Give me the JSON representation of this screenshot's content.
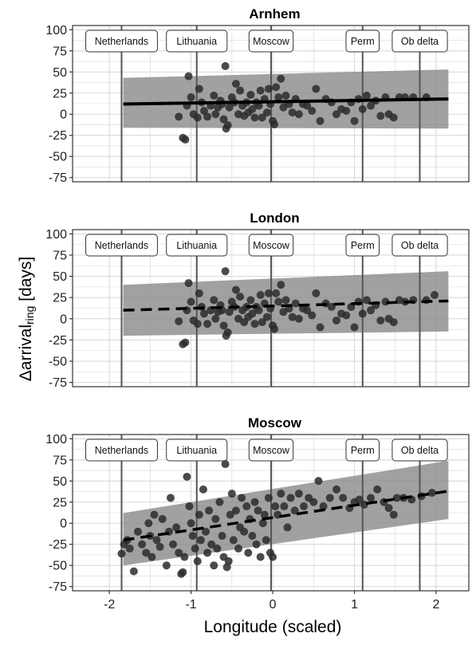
{
  "figure": {
    "ylabel_main": "Δarrival",
    "ylabel_sub": "ring",
    "ylabel_unit": " [days]",
    "xlabel": "Longitude (scaled)"
  },
  "colors": {
    "panel_bg": "#ffffff",
    "grid": "#d9d9d9",
    "ribbon": "#8a8a8a",
    "points": "#2b2b2b",
    "line": "#000000",
    "vline": "#555555"
  },
  "chart_data": [
    {
      "type": "scatter",
      "title": "Arnhem",
      "trend_style": "solid",
      "xlim": [
        -2.45,
        2.4
      ],
      "ylim": [
        -80,
        105
      ],
      "x_ticks": [
        -2,
        -1,
        0,
        1,
        2
      ],
      "y_ticks": [
        -75,
        -50,
        -25,
        0,
        25,
        50,
        75,
        100
      ],
      "grid": true,
      "locations": [
        {
          "label": "Netherlands",
          "x": -1.85
        },
        {
          "label": "Lithuania",
          "x": -0.93
        },
        {
          "label": "Moscow",
          "x": -0.02
        },
        {
          "label": "Perm",
          "x": 1.1
        },
        {
          "label": "Ob delta",
          "x": 1.8
        }
      ],
      "trend": {
        "x": [
          -1.83,
          2.15
        ],
        "y": [
          12,
          18
        ]
      },
      "band": {
        "x": [
          -1.83,
          2.15
        ],
        "lower": [
          -16,
          -17
        ],
        "upper": [
          43,
          53
        ]
      },
      "points": [
        [
          -1.1,
          -28
        ],
        [
          -1.07,
          -30
        ],
        [
          -1.15,
          -3
        ],
        [
          -1.05,
          10
        ],
        [
          -1.03,
          45
        ],
        [
          -1.0,
          20
        ],
        [
          -0.97,
          0
        ],
        [
          -0.92,
          -4
        ],
        [
          -0.9,
          30
        ],
        [
          -0.87,
          14
        ],
        [
          -0.84,
          4
        ],
        [
          -0.8,
          -3
        ],
        [
          -0.76,
          10
        ],
        [
          -0.72,
          22
        ],
        [
          -0.7,
          0
        ],
        [
          -0.67,
          8
        ],
        [
          -0.64,
          16
        ],
        [
          -0.62,
          12
        ],
        [
          -0.6,
          -6
        ],
        [
          -0.58,
          57
        ],
        [
          -0.57,
          -17
        ],
        [
          -0.55,
          -13
        ],
        [
          -0.53,
          8
        ],
        [
          -0.5,
          20
        ],
        [
          -0.47,
          14
        ],
        [
          -0.45,
          36
        ],
        [
          -0.42,
          0
        ],
        [
          -0.4,
          28
        ],
        [
          -0.37,
          10
        ],
        [
          -0.35,
          -2
        ],
        [
          -0.32,
          14
        ],
        [
          -0.3,
          2
        ],
        [
          -0.27,
          23
        ],
        [
          -0.25,
          6
        ],
        [
          -0.22,
          -4
        ],
        [
          -0.2,
          14
        ],
        [
          -0.17,
          10
        ],
        [
          -0.15,
          28
        ],
        [
          -0.13,
          -4
        ],
        [
          -0.1,
          18
        ],
        [
          -0.07,
          2
        ],
        [
          -0.05,
          30
        ],
        [
          -0.03,
          12
        ],
        [
          0.0,
          -8
        ],
        [
          0.02,
          -12
        ],
        [
          0.04,
          32
        ],
        [
          0.07,
          20
        ],
        [
          0.1,
          42
        ],
        [
          0.13,
          8
        ],
        [
          0.16,
          22
        ],
        [
          0.2,
          12
        ],
        [
          0.24,
          2
        ],
        [
          0.28,
          18
        ],
        [
          0.32,
          0
        ],
        [
          0.37,
          12
        ],
        [
          0.42,
          10
        ],
        [
          0.48,
          4
        ],
        [
          0.53,
          30
        ],
        [
          0.58,
          -8
        ],
        [
          0.65,
          18
        ],
        [
          0.72,
          14
        ],
        [
          0.78,
          0
        ],
        [
          0.84,
          6
        ],
        [
          0.9,
          4
        ],
        [
          0.96,
          14
        ],
        [
          1.0,
          -8
        ],
        [
          1.05,
          18
        ],
        [
          1.1,
          6
        ],
        [
          1.15,
          22
        ],
        [
          1.2,
          10
        ],
        [
          1.26,
          16
        ],
        [
          1.32,
          -2
        ],
        [
          1.38,
          20
        ],
        [
          1.42,
          0
        ],
        [
          1.48,
          -4
        ],
        [
          1.55,
          20
        ],
        [
          1.62,
          20
        ],
        [
          1.72,
          20
        ],
        [
          1.88,
          20
        ]
      ]
    },
    {
      "type": "scatter",
      "title": "London",
      "trend_style": "dashed",
      "xlim": [
        -2.45,
        2.4
      ],
      "ylim": [
        -80,
        105
      ],
      "x_ticks": [
        -2,
        -1,
        0,
        1,
        2
      ],
      "y_ticks": [
        -75,
        -50,
        -25,
        0,
        25,
        50,
        75,
        100
      ],
      "grid": true,
      "locations": [
        {
          "label": "Netherlands",
          "x": -1.85
        },
        {
          "label": "Lithuania",
          "x": -0.93
        },
        {
          "label": "Moscow",
          "x": -0.02
        },
        {
          "label": "Perm",
          "x": 1.1
        },
        {
          "label": "Ob delta",
          "x": 1.8
        }
      ],
      "trend": {
        "x": [
          -1.83,
          2.15
        ],
        "y": [
          10,
          21
        ]
      },
      "band": {
        "x": [
          -1.83,
          2.15
        ],
        "lower": [
          -20,
          -15
        ],
        "upper": [
          40,
          56
        ]
      },
      "points": [
        [
          -1.1,
          -30
        ],
        [
          -1.07,
          -28
        ],
        [
          -1.15,
          -3
        ],
        [
          -1.05,
          10
        ],
        [
          -1.03,
          42
        ],
        [
          -1.0,
          20
        ],
        [
          -0.97,
          -2
        ],
        [
          -0.92,
          -6
        ],
        [
          -0.9,
          30
        ],
        [
          -0.87,
          14
        ],
        [
          -0.84,
          6
        ],
        [
          -0.8,
          -6
        ],
        [
          -0.76,
          10
        ],
        [
          -0.72,
          22
        ],
        [
          -0.7,
          0
        ],
        [
          -0.67,
          8
        ],
        [
          -0.64,
          16
        ],
        [
          -0.62,
          10
        ],
        [
          -0.6,
          -8
        ],
        [
          -0.58,
          56
        ],
        [
          -0.57,
          -20
        ],
        [
          -0.55,
          -16
        ],
        [
          -0.53,
          8
        ],
        [
          -0.5,
          20
        ],
        [
          -0.47,
          14
        ],
        [
          -0.45,
          34
        ],
        [
          -0.42,
          0
        ],
        [
          -0.4,
          26
        ],
        [
          -0.37,
          10
        ],
        [
          -0.35,
          -4
        ],
        [
          -0.32,
          14
        ],
        [
          -0.3,
          2
        ],
        [
          -0.27,
          22
        ],
        [
          -0.25,
          6
        ],
        [
          -0.22,
          -6
        ],
        [
          -0.2,
          14
        ],
        [
          -0.17,
          10
        ],
        [
          -0.15,
          28
        ],
        [
          -0.13,
          -4
        ],
        [
          -0.1,
          18
        ],
        [
          -0.07,
          2
        ],
        [
          -0.05,
          30
        ],
        [
          -0.03,
          12
        ],
        [
          0.0,
          -8
        ],
        [
          0.02,
          -12
        ],
        [
          0.04,
          30
        ],
        [
          0.07,
          20
        ],
        [
          0.1,
          40
        ],
        [
          0.13,
          8
        ],
        [
          0.16,
          22
        ],
        [
          0.2,
          12
        ],
        [
          0.24,
          2
        ],
        [
          0.28,
          18
        ],
        [
          0.32,
          0
        ],
        [
          0.37,
          12
        ],
        [
          0.42,
          10
        ],
        [
          0.48,
          4
        ],
        [
          0.53,
          30
        ],
        [
          0.58,
          -10
        ],
        [
          0.65,
          18
        ],
        [
          0.72,
          14
        ],
        [
          0.78,
          -2
        ],
        [
          0.84,
          6
        ],
        [
          0.9,
          4
        ],
        [
          0.96,
          14
        ],
        [
          1.0,
          -10
        ],
        [
          1.05,
          20
        ],
        [
          1.1,
          6
        ],
        [
          1.15,
          22
        ],
        [
          1.2,
          10
        ],
        [
          1.26,
          16
        ],
        [
          1.32,
          -2
        ],
        [
          1.38,
          20
        ],
        [
          1.42,
          0
        ],
        [
          1.48,
          -4
        ],
        [
          1.55,
          22
        ],
        [
          1.62,
          20
        ],
        [
          1.72,
          22
        ],
        [
          1.88,
          22
        ],
        [
          1.98,
          28
        ]
      ]
    },
    {
      "type": "scatter",
      "title": "Moscow",
      "trend_style": "dashed",
      "xlim": [
        -2.45,
        2.4
      ],
      "ylim": [
        -80,
        105
      ],
      "x_ticks": [
        -2,
        -1,
        0,
        1,
        2
      ],
      "y_ticks": [
        -75,
        -50,
        -25,
        0,
        25,
        50,
        75,
        100
      ],
      "grid": true,
      "locations": [
        {
          "label": "Netherlands",
          "x": -1.85
        },
        {
          "label": "Lithuania",
          "x": -0.93
        },
        {
          "label": "Moscow",
          "x": -0.02
        },
        {
          "label": "Perm",
          "x": 1.1
        },
        {
          "label": "Ob delta",
          "x": 1.8
        }
      ],
      "trend": {
        "x": [
          -1.83,
          2.15
        ],
        "y": [
          -20,
          38
        ]
      },
      "band": {
        "x": [
          -1.83,
          2.15
        ],
        "lower": [
          -50,
          5
        ],
        "upper": [
          12,
          74
        ]
      },
      "points": [
        [
          -1.85,
          -36
        ],
        [
          -1.82,
          -25
        ],
        [
          -1.78,
          -20
        ],
        [
          -1.75,
          -30
        ],
        [
          -1.7,
          -57
        ],
        [
          -1.65,
          -10
        ],
        [
          -1.6,
          -25
        ],
        [
          -1.55,
          -35
        ],
        [
          -1.52,
          0
        ],
        [
          -1.5,
          -15
        ],
        [
          -1.48,
          -40
        ],
        [
          -1.45,
          10
        ],
        [
          -1.42,
          -20
        ],
        [
          -1.38,
          -28
        ],
        [
          -1.35,
          5
        ],
        [
          -1.3,
          -50
        ],
        [
          -1.27,
          -10
        ],
        [
          -1.25,
          30
        ],
        [
          -1.22,
          -25
        ],
        [
          -1.18,
          -5
        ],
        [
          -1.15,
          -35
        ],
        [
          -1.12,
          -60
        ],
        [
          -1.1,
          -58
        ],
        [
          -1.08,
          -40
        ],
        [
          -1.05,
          55
        ],
        [
          -1.02,
          20
        ],
        [
          -1.0,
          0
        ],
        [
          -0.98,
          -15
        ],
        [
          -0.95,
          -30
        ],
        [
          -0.92,
          -45
        ],
        [
          -0.9,
          10
        ],
        [
          -0.88,
          -20
        ],
        [
          -0.85,
          40
        ],
        [
          -0.82,
          -10
        ],
        [
          -0.8,
          -35
        ],
        [
          -0.78,
          15
        ],
        [
          -0.75,
          -25
        ],
        [
          -0.72,
          -50
        ],
        [
          -0.7,
          5
        ],
        [
          -0.68,
          -30
        ],
        [
          -0.65,
          25
        ],
        [
          -0.62,
          -15
        ],
        [
          -0.6,
          -40
        ],
        [
          -0.58,
          70
        ],
        [
          -0.56,
          -52
        ],
        [
          -0.54,
          -45
        ],
        [
          -0.52,
          10
        ],
        [
          -0.5,
          35
        ],
        [
          -0.48,
          -20
        ],
        [
          -0.45,
          15
        ],
        [
          -0.42,
          -30
        ],
        [
          -0.4,
          -5
        ],
        [
          -0.38,
          30
        ],
        [
          -0.35,
          -10
        ],
        [
          -0.32,
          20
        ],
        [
          -0.3,
          -35
        ],
        [
          -0.28,
          5
        ],
        [
          -0.25,
          -15
        ],
        [
          -0.22,
          25
        ],
        [
          -0.2,
          -25
        ],
        [
          -0.18,
          15
        ],
        [
          -0.15,
          -40
        ],
        [
          -0.12,
          0
        ],
        [
          -0.1,
          10
        ],
        [
          -0.08,
          -20
        ],
        [
          -0.05,
          30
        ],
        [
          -0.03,
          -35
        ],
        [
          0.0,
          -40
        ],
        [
          0.03,
          20
        ],
        [
          0.06,
          10
        ],
        [
          0.1,
          35
        ],
        [
          0.14,
          20
        ],
        [
          0.18,
          -5
        ],
        [
          0.22,
          30
        ],
        [
          0.27,
          15
        ],
        [
          0.32,
          35
        ],
        [
          0.38,
          20
        ],
        [
          0.44,
          30
        ],
        [
          0.5,
          25
        ],
        [
          0.56,
          50
        ],
        [
          0.62,
          20
        ],
        [
          0.7,
          30
        ],
        [
          0.78,
          40
        ],
        [
          0.86,
          30
        ],
        [
          0.94,
          18
        ],
        [
          1.0,
          25
        ],
        [
          1.06,
          28
        ],
        [
          1.12,
          22
        ],
        [
          1.2,
          30
        ],
        [
          1.28,
          40
        ],
        [
          1.36,
          25
        ],
        [
          1.42,
          18
        ],
        [
          1.48,
          10
        ],
        [
          1.52,
          30
        ],
        [
          1.6,
          30
        ],
        [
          1.7,
          28
        ],
        [
          1.82,
          32
        ],
        [
          1.95,
          36
        ]
      ]
    }
  ]
}
